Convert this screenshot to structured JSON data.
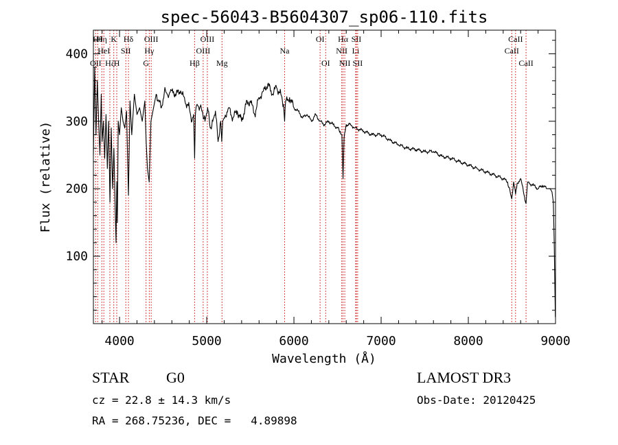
{
  "chart_data": {
    "type": "line",
    "title": "spec-56043-B5604307_sp06-110.fits",
    "xlabel": "Wavelength (Å)",
    "ylabel": "Flux (relative)",
    "xlim": [
      3700,
      9000
    ],
    "ylim": [
      0,
      435
    ],
    "x_ticks": [
      4000,
      5000,
      6000,
      7000,
      8000,
      9000
    ],
    "y_ticks": [
      100,
      200,
      300,
      400
    ],
    "series": [
      {
        "name": "flux",
        "x": [
          3700,
          3715,
          3730,
          3745,
          3760,
          3775,
          3790,
          3800,
          3815,
          3830,
          3845,
          3860,
          3875,
          3890,
          3905,
          3920,
          3935,
          3950,
          3960,
          3968,
          3975,
          3985,
          4000,
          4020,
          4040,
          4060,
          4080,
          4102,
          4120,
          4140,
          4170,
          4200,
          4230,
          4260,
          4290,
          4305,
          4320,
          4340,
          4360,
          4390,
          4420,
          4450,
          4480,
          4520,
          4560,
          4600,
          4650,
          4700,
          4750,
          4800,
          4830,
          4850,
          4861,
          4870,
          4890,
          4920,
          4950,
          4980,
          5010,
          5040,
          5070,
          5100,
          5130,
          5160,
          5172,
          5183,
          5200,
          5250,
          5300,
          5350,
          5400,
          5450,
          5500,
          5550,
          5600,
          5650,
          5700,
          5750,
          5800,
          5850,
          5880,
          5893,
          5905,
          5950,
          6000,
          6050,
          6100,
          6150,
          6200,
          6250,
          6300,
          6350,
          6400,
          6450,
          6500,
          6530,
          6550,
          6563,
          6575,
          6600,
          6650,
          6700,
          6750,
          6800,
          6900,
          7000,
          7100,
          7200,
          7300,
          7400,
          7500,
          7600,
          7700,
          7800,
          7900,
          8000,
          8100,
          8200,
          8300,
          8400,
          8450,
          8498,
          8520,
          8542,
          8560,
          8600,
          8662,
          8680,
          8700,
          8750,
          8800,
          8850,
          8900,
          8940,
          8960,
          8975,
          8985,
          8992,
          8998
        ],
        "values": [
          250,
          380,
          280,
          360,
          300,
          250,
          340,
          270,
          300,
          245,
          310,
          230,
          300,
          180,
          290,
          200,
          260,
          170,
          120,
          210,
          150,
          300,
          280,
          320,
          300,
          290,
          315,
          190,
          330,
          280,
          340,
          310,
          320,
          300,
          330,
          270,
          230,
          210,
          300,
          320,
          340,
          330,
          320,
          350,
          335,
          345,
          340,
          345,
          330,
          320,
          300,
          310,
          245,
          310,
          325,
          320,
          315,
          300,
          320,
          290,
          300,
          315,
          270,
          300,
          270,
          300,
          305,
          320,
          305,
          315,
          300,
          325,
          330,
          310,
          335,
          345,
          355,
          340,
          350,
          340,
          325,
          300,
          330,
          335,
          320,
          315,
          305,
          310,
          300,
          310,
          300,
          295,
          300,
          295,
          290,
          285,
          280,
          215,
          275,
          295,
          295,
          290,
          288,
          285,
          280,
          280,
          272,
          265,
          260,
          258,
          255,
          255,
          248,
          245,
          240,
          235,
          230,
          225,
          220,
          215,
          210,
          185,
          210,
          192,
          208,
          215,
          178,
          210,
          208,
          205,
          200,
          205,
          200,
          200,
          195,
          180,
          120,
          60,
          10
        ]
      }
    ],
    "line_markers": [
      {
        "wavelength": 3726,
        "label": "OII",
        "row": 3
      },
      {
        "wavelength": 3750,
        "label": "Hθ",
        "row": 1
      },
      {
        "wavelength": 3797,
        "label": "Hη",
        "row": 1
      },
      {
        "wavelength": 3820,
        "label": "HeI",
        "row": 2
      },
      {
        "wavelength": 3889,
        "label": "Hζ",
        "row": 3
      },
      {
        "wavelength": 3934,
        "label": "K",
        "row": 1
      },
      {
        "wavelength": 3968,
        "label": "H",
        "row": 3
      },
      {
        "wavelength": 4072,
        "label": "SII",
        "row": 2
      },
      {
        "wavelength": 4102,
        "label": "Hδ",
        "row": 1
      },
      {
        "wavelength": 4304,
        "label": "G",
        "row": 3
      },
      {
        "wavelength": 4341,
        "label": "Hγ",
        "row": 2
      },
      {
        "wavelength": 4363,
        "label": "OIII",
        "row": 1
      },
      {
        "wavelength": 4861,
        "label": "Hβ",
        "row": 3
      },
      {
        "wavelength": 4959,
        "label": "OIII",
        "row": 2
      },
      {
        "wavelength": 5007,
        "label": "OIII",
        "row": 1
      },
      {
        "wavelength": 5175,
        "label": "Mg",
        "row": 3
      },
      {
        "wavelength": 5893,
        "label": "Na",
        "row": 2
      },
      {
        "wavelength": 6300,
        "label": "OI",
        "row": 1
      },
      {
        "wavelength": 6364,
        "label": "OI",
        "row": 3
      },
      {
        "wavelength": 6548,
        "label": "NII",
        "row": 2
      },
      {
        "wavelength": 6563,
        "label": "Hα",
        "row": 1
      },
      {
        "wavelength": 6583,
        "label": "NII",
        "row": 3
      },
      {
        "wavelength": 6708,
        "label": "Li",
        "row": 2
      },
      {
        "wavelength": 6716,
        "label": "SII",
        "row": 1
      },
      {
        "wavelength": 6731,
        "label": "SII",
        "row": 3
      },
      {
        "wavelength": 8498,
        "label": "CaII",
        "row": 2
      },
      {
        "wavelength": 8542,
        "label": "CaII",
        "row": 1
      },
      {
        "wavelength": 8662,
        "label": "CaII",
        "row": 3
      }
    ],
    "colors": {
      "spectrum": "#000000",
      "markers": "#cc0000",
      "axes": "#000000"
    }
  },
  "info": {
    "object_class": "STAR",
    "subclass": "G0",
    "survey": "LAMOST DR3",
    "redshift_line": "cz = 22.8 ± 14.3 km/s",
    "obs_date": "Obs-Date: 20120425",
    "coords": "RA = 268.75236, DEC =   4.89898"
  }
}
